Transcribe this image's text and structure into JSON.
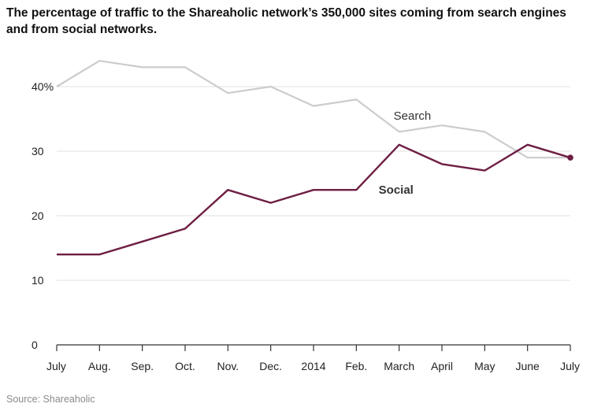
{
  "title": "The percentage of traffic to the Shareaholic network’s 350,000 sites coming from search engines and from social networks.",
  "source": "Source: Shareaholic",
  "chart_data": {
    "type": "line",
    "title": "The percentage of traffic to the Shareaholic network’s 350,000 sites coming from search engines and from social networks.",
    "xlabel": "",
    "ylabel": "",
    "categories": [
      "July",
      "Aug.",
      "Sep.",
      "Oct.",
      "Nov.",
      "Dec.",
      "2014",
      "Feb.",
      "March",
      "April",
      "May",
      "June",
      "July"
    ],
    "ylim": [
      0,
      45
    ],
    "yticks": [
      0,
      10,
      20,
      30,
      40
    ],
    "ytick_labels": [
      "0",
      "10",
      "20",
      "30",
      "40%"
    ],
    "grid": true,
    "series": [
      {
        "name": "Search",
        "color": "#cccccc",
        "values": [
          40,
          44,
          43,
          43,
          39,
          40,
          37,
          38,
          33,
          34,
          33,
          29,
          29
        ],
        "label_at_index": 8,
        "label_value": 35.5
      },
      {
        "name": "Social",
        "color": "#6e1e44",
        "values": [
          14,
          14,
          16,
          18,
          24,
          22,
          24,
          24,
          31,
          28,
          27,
          31,
          29
        ],
        "label_at_index": 8,
        "label_value": 24,
        "end_marker": true
      }
    ]
  }
}
